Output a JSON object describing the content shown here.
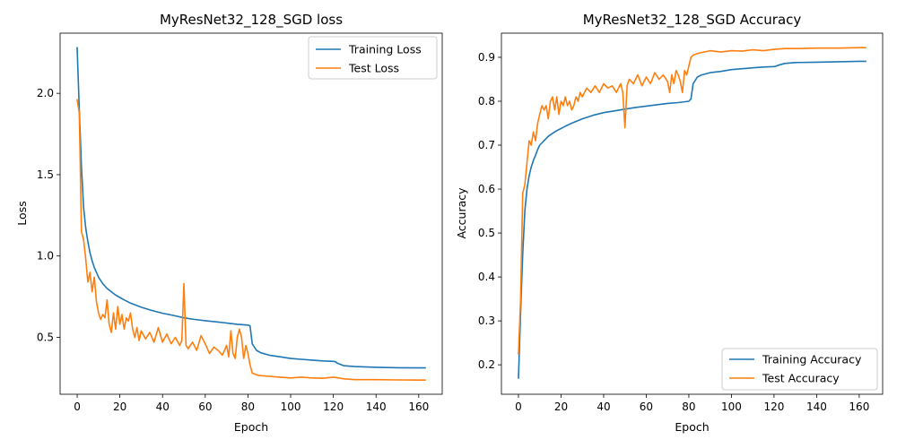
{
  "chart_data": [
    {
      "type": "line",
      "title": "MyResNet32_128_SGD loss",
      "xlabel": "Epoch",
      "ylabel": "Loss",
      "xlim": [
        -8,
        171
      ],
      "ylim": [
        0.15,
        2.37
      ],
      "xticks": [
        0,
        20,
        40,
        60,
        80,
        100,
        120,
        140,
        160
      ],
      "yticks": [
        0.5,
        1.0,
        1.5,
        2.0
      ],
      "legend_position": "upper right",
      "grid": false,
      "series": [
        {
          "name": "Training Loss",
          "color": "#1f77b4",
          "x": [
            0,
            1,
            2,
            3,
            4,
            5,
            6,
            7,
            8,
            9,
            10,
            12,
            14,
            16,
            18,
            20,
            22,
            25,
            30,
            35,
            40,
            45,
            50,
            55,
            60,
            65,
            70,
            75,
            80,
            81,
            82,
            84,
            86,
            90,
            95,
            100,
            105,
            110,
            115,
            120,
            121,
            122,
            125,
            130,
            140,
            150,
            160,
            163
          ],
          "y": [
            2.28,
            1.9,
            1.55,
            1.3,
            1.17,
            1.09,
            1.02,
            0.97,
            0.93,
            0.9,
            0.87,
            0.83,
            0.8,
            0.78,
            0.76,
            0.745,
            0.73,
            0.71,
            0.685,
            0.665,
            0.648,
            0.635,
            0.62,
            0.61,
            0.602,
            0.595,
            0.588,
            0.58,
            0.575,
            0.57,
            0.46,
            0.42,
            0.405,
            0.39,
            0.38,
            0.37,
            0.365,
            0.36,
            0.355,
            0.352,
            0.35,
            0.34,
            0.325,
            0.32,
            0.316,
            0.313,
            0.312,
            0.312
          ]
        },
        {
          "name": "Test Loss",
          "color": "#ff7f0e",
          "x": [
            0,
            1,
            2,
            3,
            4,
            5,
            6,
            7,
            8,
            9,
            10,
            11,
            12,
            13,
            14,
            15,
            16,
            17,
            18,
            19,
            20,
            21,
            22,
            23,
            24,
            25,
            26,
            27,
            28,
            29,
            30,
            32,
            34,
            36,
            38,
            40,
            42,
            44,
            46,
            48,
            49,
            50,
            51,
            52,
            54,
            56,
            58,
            60,
            62,
            64,
            66,
            68,
            70,
            71,
            72,
            73,
            74,
            75,
            76,
            77,
            78,
            79,
            80,
            81,
            82,
            85,
            90,
            95,
            100,
            105,
            110,
            115,
            120,
            125,
            130,
            140,
            150,
            160,
            163
          ],
          "y": [
            1.96,
            1.88,
            1.15,
            1.1,
            0.98,
            0.84,
            0.9,
            0.78,
            0.87,
            0.72,
            0.65,
            0.61,
            0.64,
            0.62,
            0.73,
            0.58,
            0.53,
            0.65,
            0.55,
            0.69,
            0.58,
            0.64,
            0.55,
            0.62,
            0.6,
            0.65,
            0.55,
            0.5,
            0.56,
            0.48,
            0.54,
            0.49,
            0.53,
            0.47,
            0.56,
            0.47,
            0.52,
            0.46,
            0.5,
            0.45,
            0.48,
            0.83,
            0.45,
            0.43,
            0.47,
            0.42,
            0.51,
            0.46,
            0.4,
            0.44,
            0.42,
            0.39,
            0.45,
            0.38,
            0.54,
            0.4,
            0.37,
            0.5,
            0.55,
            0.5,
            0.37,
            0.45,
            0.4,
            0.33,
            0.28,
            0.265,
            0.26,
            0.255,
            0.25,
            0.255,
            0.25,
            0.248,
            0.255,
            0.245,
            0.24,
            0.24,
            0.238,
            0.237,
            0.237
          ]
        }
      ]
    },
    {
      "type": "line",
      "title": "MyResNet32_128_SGD Accuracy",
      "xlabel": "Epoch",
      "ylabel": "Accuracy",
      "xlim": [
        -8,
        171
      ],
      "ylim": [
        0.133,
        0.955
      ],
      "xticks": [
        0,
        20,
        40,
        60,
        80,
        100,
        120,
        140,
        160
      ],
      "yticks": [
        0.2,
        0.3,
        0.4,
        0.5,
        0.6,
        0.7,
        0.8,
        0.9
      ],
      "legend_position": "lower right",
      "grid": false,
      "series": [
        {
          "name": "Training Accuracy",
          "color": "#1f77b4",
          "x": [
            0,
            1,
            2,
            3,
            4,
            5,
            6,
            7,
            8,
            9,
            10,
            12,
            14,
            16,
            18,
            20,
            22,
            25,
            30,
            35,
            40,
            45,
            50,
            55,
            60,
            65,
            70,
            75,
            80,
            81,
            82,
            84,
            86,
            90,
            95,
            100,
            105,
            110,
            115,
            120,
            121,
            122,
            125,
            130,
            140,
            150,
            160,
            163
          ],
          "y": [
            0.17,
            0.32,
            0.45,
            0.55,
            0.6,
            0.63,
            0.65,
            0.665,
            0.677,
            0.69,
            0.7,
            0.71,
            0.72,
            0.727,
            0.733,
            0.738,
            0.743,
            0.75,
            0.76,
            0.768,
            0.774,
            0.778,
            0.782,
            0.786,
            0.789,
            0.792,
            0.795,
            0.797,
            0.8,
            0.805,
            0.84,
            0.855,
            0.86,
            0.865,
            0.868,
            0.872,
            0.874,
            0.876,
            0.878,
            0.879,
            0.88,
            0.882,
            0.886,
            0.888,
            0.889,
            0.89,
            0.891,
            0.891
          ]
        },
        {
          "name": "Test Accuracy",
          "color": "#ff7f0e",
          "x": [
            0,
            1,
            2,
            3,
            4,
            5,
            6,
            7,
            8,
            9,
            10,
            11,
            12,
            13,
            14,
            15,
            16,
            17,
            18,
            19,
            20,
            21,
            22,
            23,
            24,
            25,
            26,
            27,
            28,
            29,
            30,
            32,
            34,
            36,
            38,
            40,
            42,
            44,
            46,
            48,
            49,
            50,
            51,
            52,
            54,
            56,
            58,
            60,
            62,
            64,
            66,
            68,
            70,
            71,
            72,
            73,
            74,
            75,
            76,
            77,
            78,
            79,
            80,
            81,
            82,
            85,
            90,
            95,
            100,
            105,
            110,
            115,
            120,
            125,
            130,
            140,
            150,
            160,
            163
          ],
          "y": [
            0.225,
            0.35,
            0.59,
            0.61,
            0.66,
            0.71,
            0.7,
            0.73,
            0.71,
            0.75,
            0.77,
            0.79,
            0.78,
            0.79,
            0.76,
            0.8,
            0.81,
            0.78,
            0.81,
            0.77,
            0.8,
            0.79,
            0.81,
            0.79,
            0.8,
            0.78,
            0.79,
            0.81,
            0.8,
            0.82,
            0.81,
            0.83,
            0.82,
            0.835,
            0.82,
            0.84,
            0.83,
            0.835,
            0.82,
            0.84,
            0.82,
            0.74,
            0.835,
            0.85,
            0.84,
            0.86,
            0.835,
            0.855,
            0.84,
            0.865,
            0.85,
            0.86,
            0.845,
            0.82,
            0.86,
            0.84,
            0.87,
            0.86,
            0.845,
            0.82,
            0.87,
            0.86,
            0.88,
            0.9,
            0.905,
            0.91,
            0.915,
            0.912,
            0.915,
            0.914,
            0.917,
            0.915,
            0.918,
            0.92,
            0.92,
            0.921,
            0.921,
            0.922,
            0.922
          ]
        }
      ]
    }
  ]
}
